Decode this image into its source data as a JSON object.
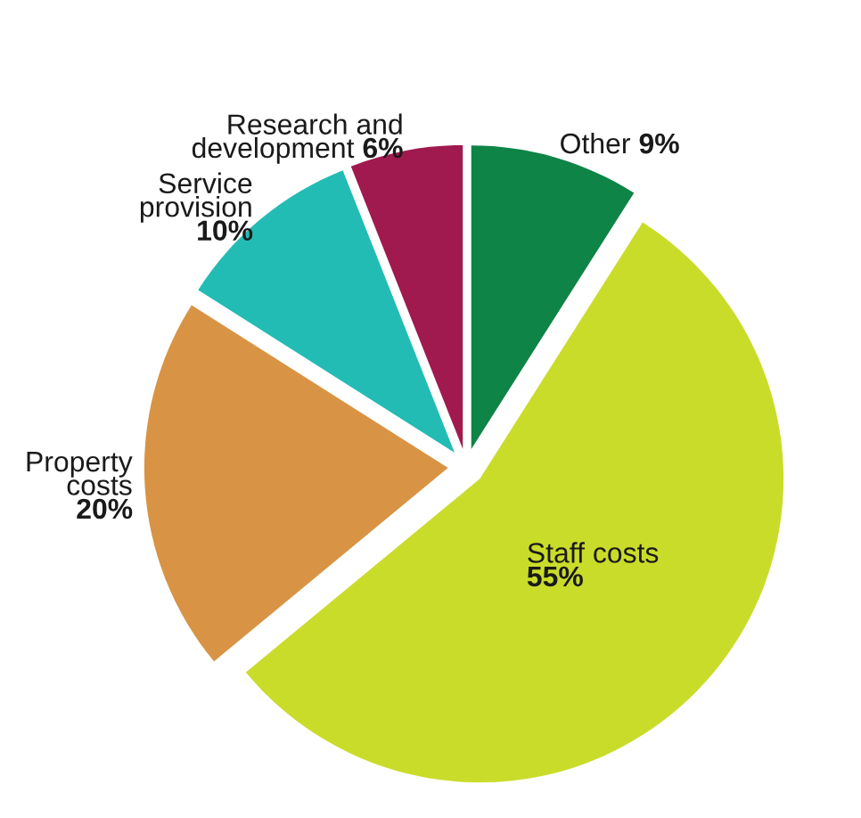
{
  "chart_data": {
    "type": "pie",
    "categories": [
      "Other",
      "Staff costs",
      "Property costs",
      "Service provision",
      "Research and development"
    ],
    "values": [
      9,
      55,
      20,
      10,
      6
    ],
    "colors": [
      "#0e8446",
      "#cadc2a",
      "#d89444",
      "#22bcb5",
      "#a01a4f"
    ],
    "value_labels": [
      "9%",
      "55%",
      "20%",
      "10%",
      "6%"
    ]
  }
}
